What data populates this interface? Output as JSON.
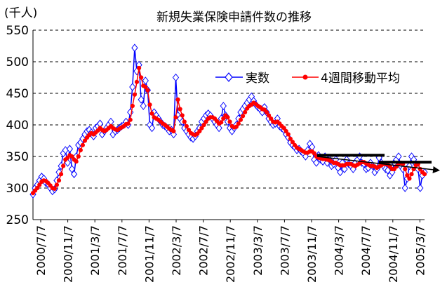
{
  "chart_data": {
    "type": "line",
    "title": "新規失業保険申請件数の推移",
    "unit": "(千人)",
    "ylim": [
      250,
      550
    ],
    "y_ticks": [
      250,
      300,
      350,
      400,
      450,
      500,
      550
    ],
    "x_tick_labels": [
      "2000/7/7",
      "2000/11/7",
      "2001/3/7",
      "2001/7/7",
      "2001/11/7",
      "2002/3/7",
      "2002/7/7",
      "2002/11/7",
      "2003/3/7",
      "2003/7/7",
      "2003/11/7",
      "2004/3/7",
      "2004/7/7",
      "2004/11/7",
      "2005/3/7"
    ],
    "grid": "horizontal dashed",
    "legend_position": "upper-right",
    "series": [
      {
        "name": "実数",
        "color": "#0000ff",
        "marker": "diamond-open",
        "values": [
          290,
          300,
          305,
          312,
          318,
          315,
          308,
          306,
          300,
          295,
          298,
          312,
          325,
          335,
          355,
          360,
          340,
          362,
          330,
          322,
          350,
          368,
          372,
          378,
          385,
          390,
          392,
          388,
          382,
          395,
          398,
          402,
          385,
          390,
          395,
          400,
          405,
          385,
          390,
          392,
          395,
          398,
          400,
          405,
          400,
          420,
          460,
          522,
          485,
          495,
          440,
          430,
          470,
          455,
          400,
          395,
          420,
          415,
          410,
          405,
          400,
          398,
          395,
          390,
          392,
          385,
          475,
          415,
          410,
          405,
          395,
          390,
          385,
          380,
          378,
          382,
          390,
          395,
          405,
          410,
          415,
          418,
          415,
          410,
          405,
          400,
          395,
          410,
          430,
          415,
          405,
          395,
          390,
          395,
          400,
          410,
          420,
          425,
          430,
          435,
          440,
          445,
          438,
          432,
          428,
          425,
          420,
          428,
          420,
          410,
          405,
          400,
          402,
          410,
          398,
          395,
          392,
          385,
          380,
          372,
          368,
          365,
          360,
          362,
          358,
          355,
          350,
          360,
          370,
          365,
          345,
          340,
          352,
          345,
          342,
          350,
          340,
          345,
          335,
          338,
          345,
          332,
          325,
          340,
          330,
          345,
          338,
          335,
          330,
          340,
          345,
          350,
          340,
          338,
          330,
          332,
          340,
          335,
          325,
          330,
          348,
          340,
          335,
          330,
          328,
          320,
          325,
          340,
          345,
          350,
          335,
          330,
          300,
          315,
          335,
          350,
          345,
          338,
          330,
          300,
          320,
          325
        ],
        "markers_every": 1
      },
      {
        "name": "4週間移動平均",
        "color": "#ff0000",
        "marker": "circle-filled",
        "values": [
          292,
          296,
          300,
          305,
          310,
          312,
          311,
          308,
          304,
          300,
          299,
          305,
          312,
          322,
          335,
          345,
          348,
          352,
          350,
          345,
          342,
          350,
          360,
          368,
          375,
          380,
          384,
          387,
          385,
          388,
          391,
          395,
          392,
          390,
          392,
          395,
          398,
          395,
          393,
          392,
          394,
          396,
          398,
          401,
          402,
          408,
          430,
          448,
          468,
          490,
          475,
          462,
          460,
          455,
          432,
          418,
          412,
          410,
          408,
          405,
          402,
          400,
          397,
          394,
          392,
          390,
          412,
          440,
          425,
          415,
          405,
          398,
          392,
          387,
          385,
          384,
          386,
          390,
          395,
          400,
          405,
          410,
          412,
          412,
          410,
          406,
          402,
          404,
          410,
          415,
          412,
          405,
          398,
          396,
          397,
          402,
          408,
          414,
          420,
          426,
          430,
          432,
          435,
          433,
          430,
          428,
          425,
          424,
          420,
          415,
          410,
          405,
          404,
          405,
          402,
          398,
          395,
          390,
          385,
          378,
          373,
          368,
          364,
          362,
          360,
          358,
          356,
          356,
          358,
          358,
          355,
          350,
          348,
          347,
          346,
          346,
          345,
          344,
          342,
          340,
          340,
          338,
          336,
          336,
          336,
          338,
          338,
          338,
          336,
          335,
          337,
          339,
          341,
          341,
          339,
          337,
          335,
          335,
          334,
          332,
          334,
          336,
          338,
          338,
          337,
          334,
          330,
          330,
          334,
          338,
          340,
          338,
          330,
          320,
          315,
          322,
          330,
          336,
          338,
          330,
          325,
          322
        ],
        "markers_every": 1
      }
    ],
    "annotation": "trend arrow pointing right around 340-352"
  }
}
